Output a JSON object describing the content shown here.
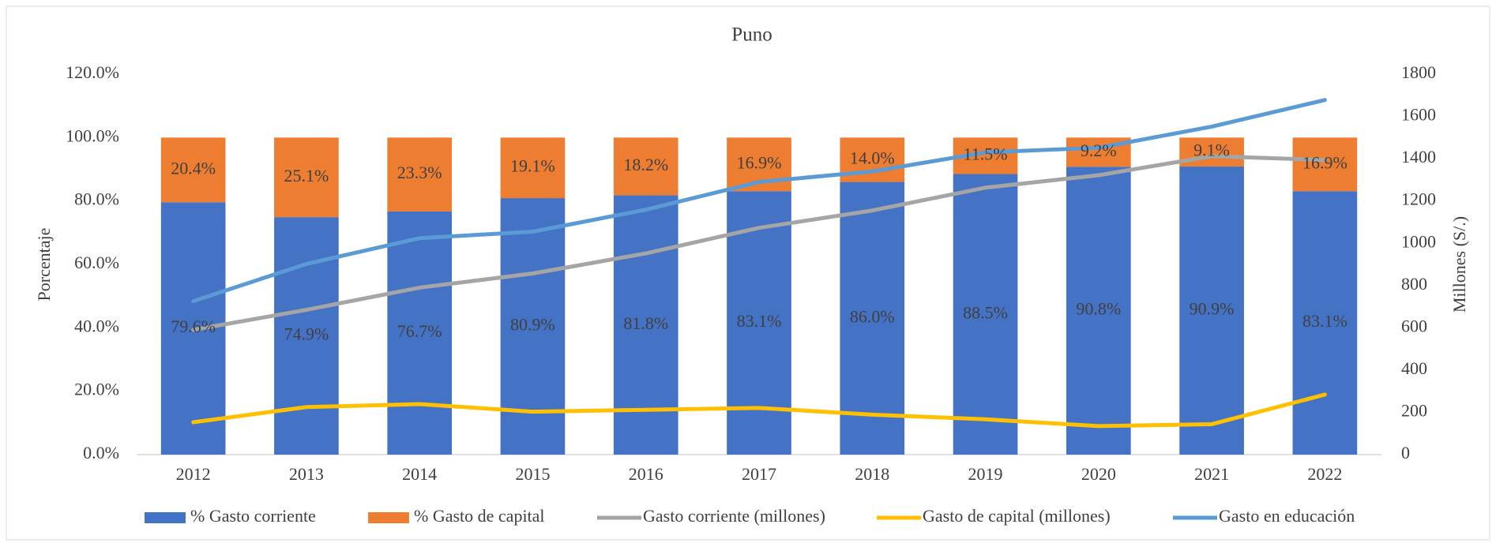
{
  "chart_data": {
    "type": "bar",
    "stacked": true,
    "title": "Puno",
    "ylabel": "Porcentaje",
    "y2label": "Millones  (S/.)",
    "categories": [
      "2012",
      "2013",
      "2014",
      "2015",
      "2016",
      "2017",
      "2018",
      "2019",
      "2020",
      "2021",
      "2022"
    ],
    "ylim": [
      0,
      120
    ],
    "yticks": [
      {
        "value": 0,
        "label": "0.0%"
      },
      {
        "value": 20,
        "label": "20.0%"
      },
      {
        "value": 40,
        "label": "40.0%"
      },
      {
        "value": 60,
        "label": "60.0%"
      },
      {
        "value": 80,
        "label": "80.0%"
      },
      {
        "value": 100,
        "label": "100.0%"
      },
      {
        "value": 120,
        "label": "120.0%"
      }
    ],
    "y2lim": [
      0,
      1800
    ],
    "y2ticks": [
      0,
      200,
      400,
      600,
      800,
      1000,
      1200,
      1400,
      1600,
      1800
    ],
    "grid": false,
    "legend": "bottom",
    "series": [
      {
        "name": "% Gasto corriente",
        "type": "bar",
        "color": "#4472c4",
        "values": [
          79.6,
          74.9,
          76.7,
          80.9,
          81.8,
          83.1,
          86.0,
          88.5,
          90.8,
          90.9,
          83.1
        ],
        "value_labels": [
          "79.6%",
          "74.9%",
          "76.7%",
          "80.9%",
          "81.8%",
          "83.1%",
          "86.0%",
          "88.5%",
          "90.8%",
          "90.9%",
          "83.1%"
        ]
      },
      {
        "name": "% Gasto de capital",
        "type": "bar",
        "color": "#ed7d31",
        "values": [
          20.4,
          25.1,
          23.3,
          19.1,
          18.2,
          16.9,
          14.0,
          11.5,
          9.2,
          9.1,
          16.9
        ],
        "value_labels": [
          "20.4%",
          "25.1%",
          "23.3%",
          "19.1%",
          "18.2%",
          "16.9%",
          "14.0%",
          "11.5%",
          "9.2%",
          "9.1%",
          "16.9%"
        ]
      },
      {
        "name": "Gasto corriente (millones)",
        "type": "line",
        "axis": "y2",
        "color": "#a5a5a5",
        "values": [
          590,
          685,
          790,
          857,
          952,
          1073,
          1155,
          1263,
          1322,
          1412,
          1394
        ]
      },
      {
        "name": "Gasto de capital (millones)",
        "type": "line",
        "axis": "y2",
        "color": "#ffc000",
        "values": [
          153,
          225,
          239,
          203,
          212,
          221,
          189,
          167,
          135,
          144,
          284
        ]
      },
      {
        "name": "Gasto en educación",
        "type": "line",
        "axis": "y2",
        "color": "#5b9bd5",
        "values": [
          726,
          902,
          1024,
          1055,
          1159,
          1290,
          1340,
          1430,
          1452,
          1552,
          1678
        ]
      }
    ]
  }
}
